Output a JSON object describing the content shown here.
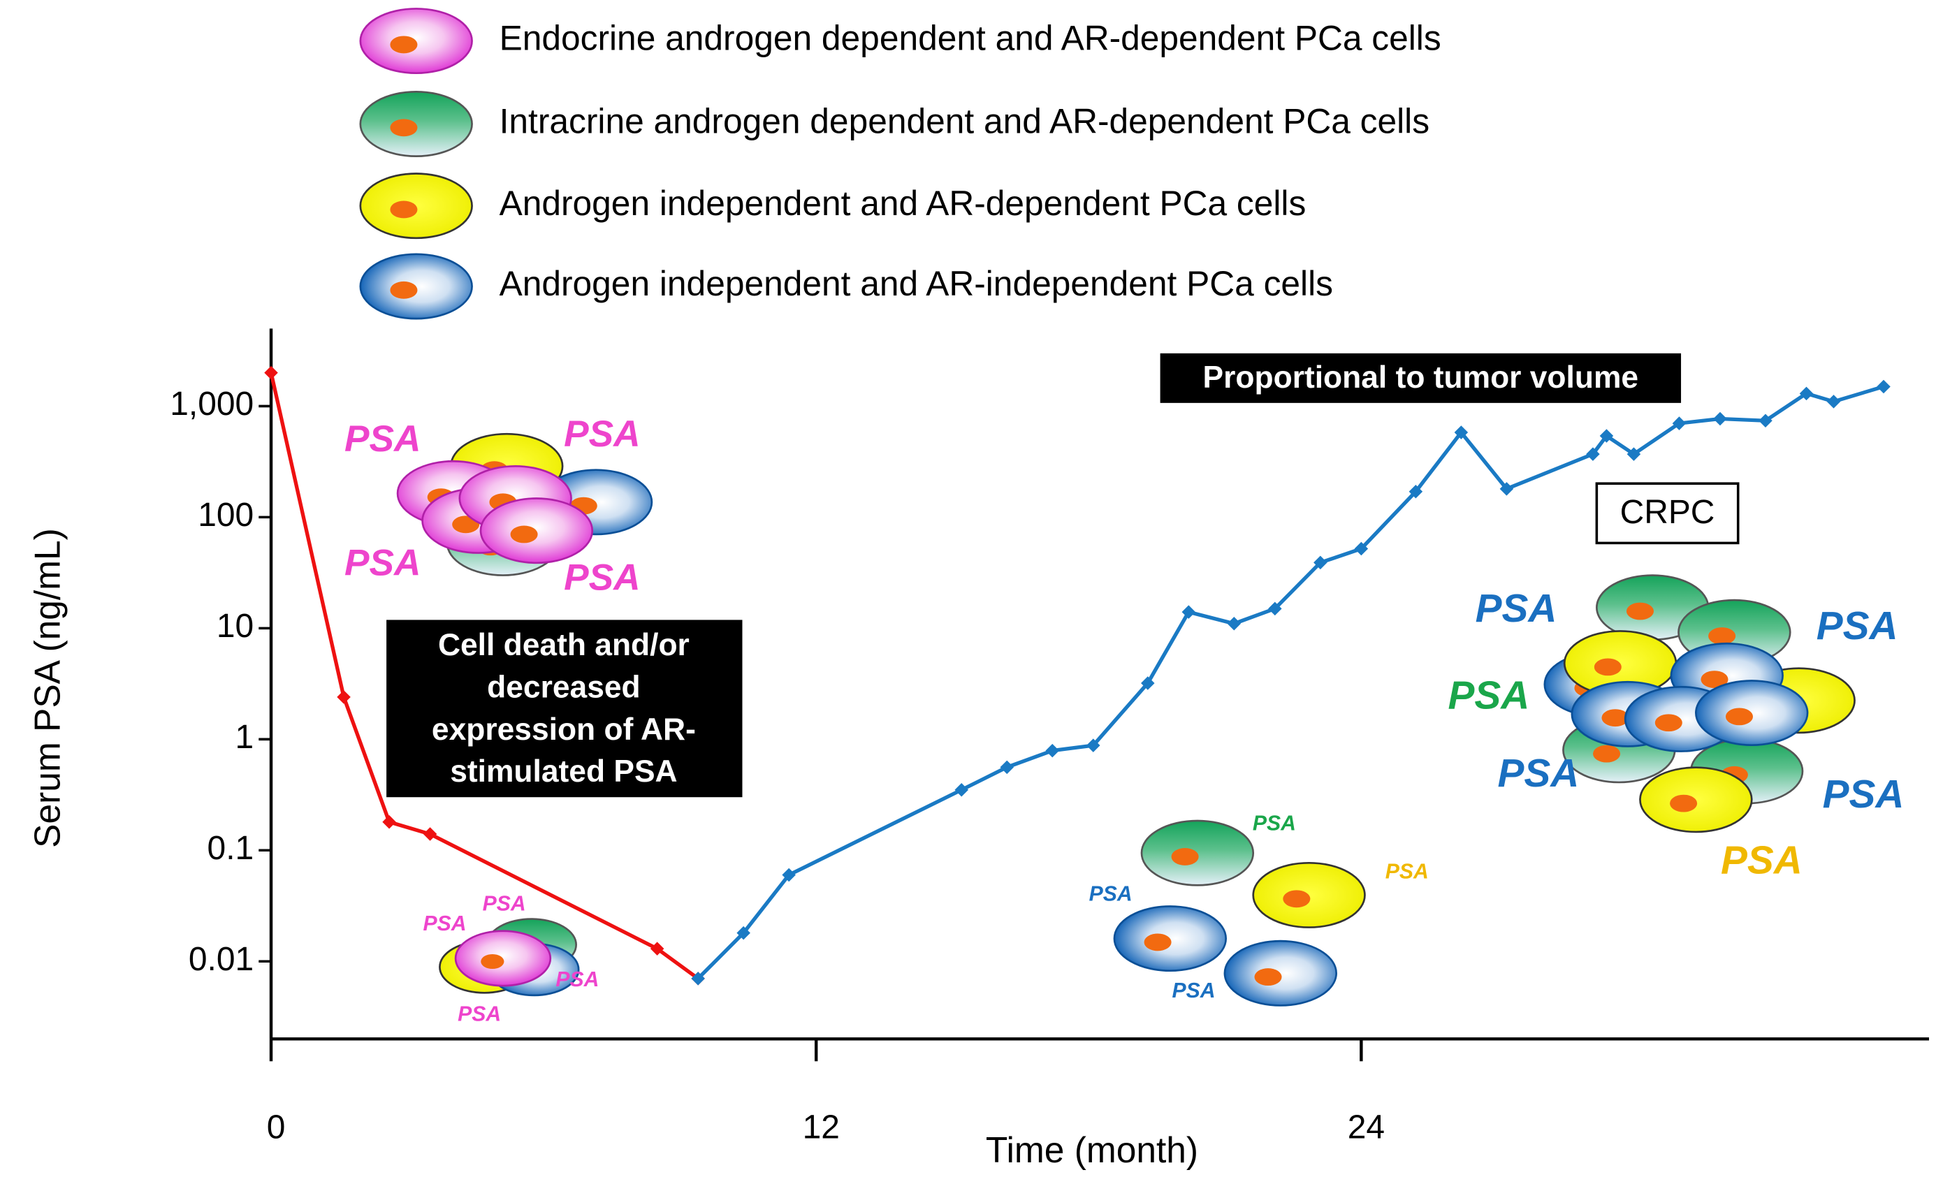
{
  "chart_data": {
    "type": "line",
    "log_y": true,
    "legend_items": [
      "Endocrine androgen dependent and AR-dependent PCa cells",
      "Intracrine androgen dependent and AR-dependent PCa cells",
      "Androgen independent and AR-dependent PCa cells",
      "Androgen independent and AR-independent PCa cells"
    ],
    "xlabel": "Time (month)",
    "ylabel": "Serum PSA (ng/mL)",
    "xlim": [
      0,
      36.5
    ],
    "xticks": [
      0,
      12,
      24
    ],
    "ylim": [
      0.002,
      5000
    ],
    "yticks": [
      {
        "value": 1000,
        "label": "1,000"
      },
      100,
      10,
      1,
      0.1,
      0.01
    ],
    "series": [
      {
        "color": "#ee1111",
        "x": [
          0,
          1.6,
          2.6,
          3.5,
          8.5,
          9.4
        ],
        "values": [
          2000,
          2.4,
          0.18,
          0.14,
          0.013,
          0.007
        ]
      },
      {
        "color": "#1a7ac4",
        "x": [
          9.4,
          10.4,
          11.4,
          15.2,
          16.2,
          17.2,
          18.1,
          19.3,
          20.2,
          21.2,
          22.1,
          23.1,
          24.0,
          25.2,
          26.2,
          27.2,
          29.1,
          29.4,
          30.0,
          31.0,
          31.9,
          32.9,
          33.8,
          34.4,
          35.5
        ],
        "values": [
          0.007,
          0.018,
          0.06,
          0.35,
          0.56,
          0.79,
          0.88,
          3.2,
          14,
          11,
          15,
          39,
          52,
          170,
          580,
          180,
          370,
          540,
          370,
          700,
          770,
          740,
          1300,
          1100,
          1500
        ]
      }
    ],
    "annotation_cell_death": [
      "Cell death and/or",
      "decreased",
      "expression of AR-",
      "stimulated PSA"
    ],
    "annotation_tumor": "Proportional to tumor volume",
    "annotation_crpc": "CRPC",
    "cell_label": "PSA"
  }
}
